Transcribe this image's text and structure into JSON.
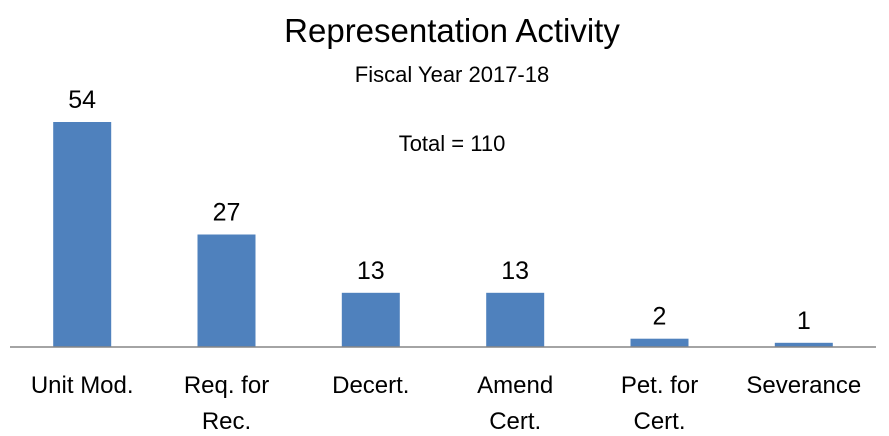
{
  "chart_data": {
    "type": "bar",
    "title": "Representation Activity",
    "subtitle": "Fiscal Year 2017-18",
    "annotation": "Total = 110",
    "categories": [
      [
        "Unit Mod."
      ],
      [
        "Req. for",
        "Rec."
      ],
      [
        "Decert."
      ],
      [
        "Amend",
        "Cert."
      ],
      [
        "Pet. for",
        "Cert."
      ],
      [
        "Severance"
      ]
    ],
    "values": [
      54,
      27,
      13,
      13,
      2,
      1
    ],
    "xlabel": "",
    "ylabel": "",
    "ylim": [
      0,
      54
    ],
    "grid": false,
    "legend": "none",
    "bar_color": "#4f81bd",
    "axis_color": "#868686"
  }
}
